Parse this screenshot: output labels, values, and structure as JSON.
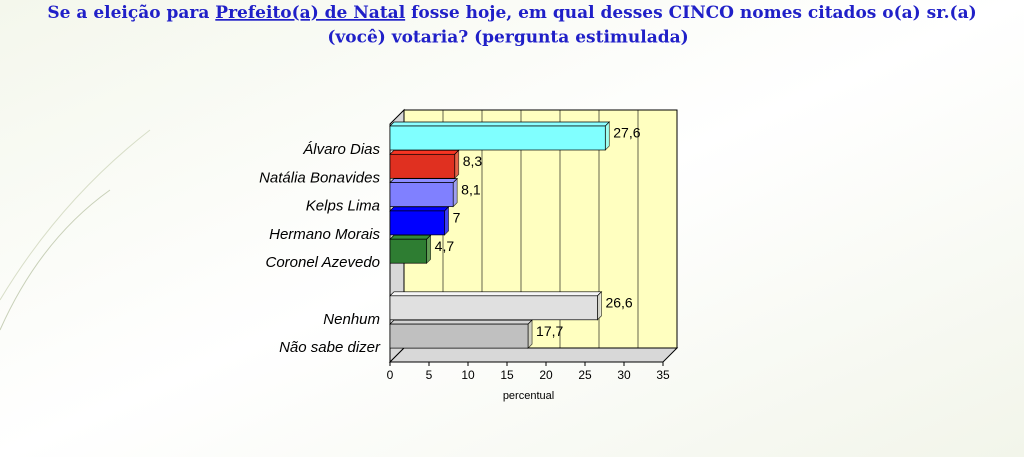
{
  "chart_data": {
    "type": "bar",
    "orientation": "horizontal",
    "title": [
      "Se a eleição para ",
      "Prefeito(a) de Natal",
      " fosse hoje, em qual desses CINCO nomes citados o(a) sr.(a)",
      "(você) votaria?   (pergunta estimulada)"
    ],
    "xlabel": "percentual",
    "categories": [
      "Álvaro Dias",
      "Natália Bonavides",
      "Kelps Lima",
      "Hermano Morais",
      "Coronel Azevedo",
      null,
      "Nenhum",
      "Não sabe dizer"
    ],
    "values": [
      27.6,
      8.3,
      8.1,
      7,
      4.7,
      null,
      26.6,
      17.7
    ],
    "value_labels": [
      "27,6",
      "8,3",
      "8,1",
      "7",
      "4,7",
      null,
      "26,6",
      "17,7"
    ],
    "colors": [
      "#80ffff",
      "#e03020",
      "#8080ff",
      "#0000ff",
      "#2e7d32",
      null,
      "#e0e0e0",
      "#c0c0c0"
    ],
    "xlim": [
      0,
      35
    ],
    "xticks": [
      0,
      5,
      10,
      15,
      20,
      25,
      30,
      35
    ],
    "grid": true,
    "wall_color": "#ffffc0"
  }
}
